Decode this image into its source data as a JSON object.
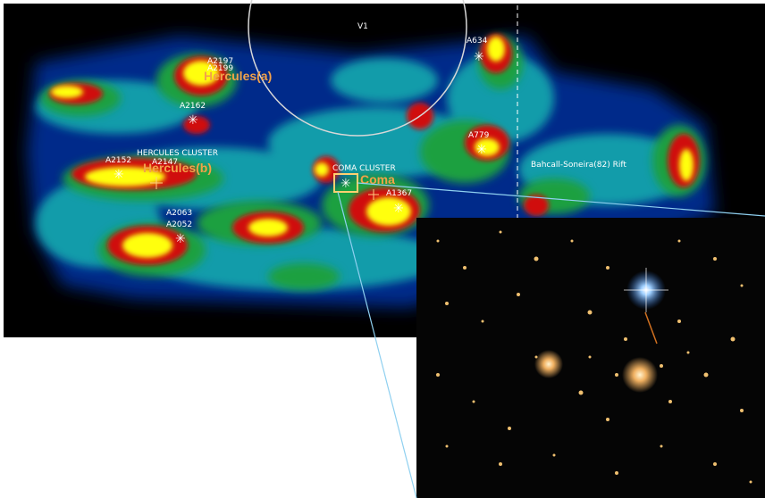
{
  "map": {
    "circle_label": "V1",
    "rift_label": "Bahcall-Soneira(82) Rift",
    "clusters": [
      {
        "id": "a634",
        "label": "A634"
      },
      {
        "id": "a2197",
        "label": "A2197"
      },
      {
        "id": "a2199",
        "label": "A2199"
      },
      {
        "id": "a2162",
        "label": "A2162"
      },
      {
        "id": "a779",
        "label": "A779"
      },
      {
        "id": "a2152",
        "label": "A2152"
      },
      {
        "id": "a2147",
        "label": "A2147"
      },
      {
        "id": "a1367",
        "label": "A1367"
      },
      {
        "id": "a2063",
        "label": "A2063"
      },
      {
        "id": "a2052",
        "label": "A2052"
      }
    ],
    "hercules_cluster": "HERCULES CLUSTER",
    "coma_cluster": "COMA CLUSTER",
    "hercules_a": "Hercules(a)",
    "hercules_b": "Hercules(b)",
    "coma": "Coma",
    "marker_symbol": "✳"
  },
  "colors": {
    "map_background": "#000000",
    "density_low": "#001a66",
    "density_mid": "#00a040",
    "density_high": "#ffff00",
    "density_peak": "#c00000",
    "accent_label": "#f2a24a",
    "connector_line": "#8fd0f0"
  }
}
